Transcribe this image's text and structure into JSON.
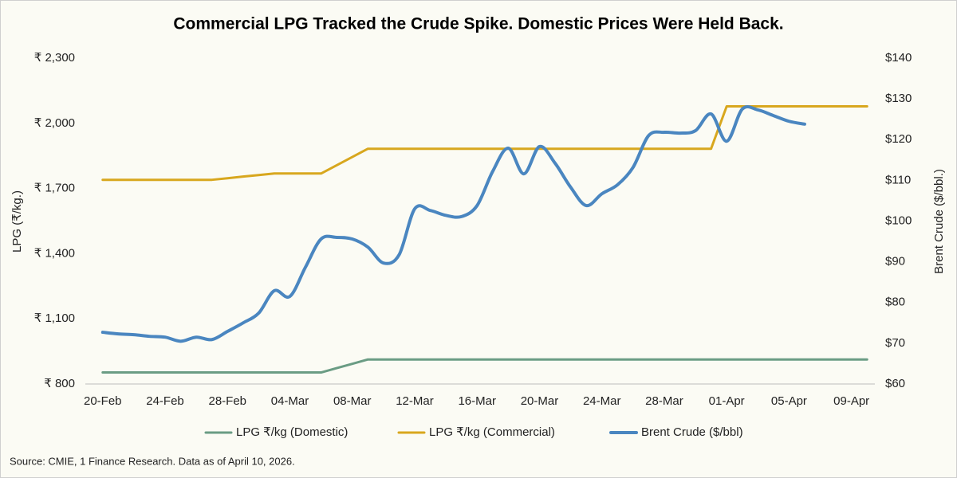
{
  "chart_data": {
    "type": "line",
    "title": "Commercial LPG Tracked the Crude Spike. Domestic Prices Were Held Back.",
    "source": "Source: CMIE, 1 Finance Research. Data as of April 10, 2026.",
    "y_label": "LPG (₹/kg.)",
    "y2_label": "Brent Crude ($/bbl.)",
    "legend": "bottom",
    "categories": [
      "20-Feb",
      null,
      null,
      null,
      "24-Feb",
      null,
      null,
      null,
      "28-Feb",
      null,
      null,
      null,
      "04-Mar",
      null,
      null,
      null,
      "08-Mar",
      null,
      null,
      null,
      "12-Mar",
      null,
      null,
      null,
      "16-Mar",
      null,
      null,
      null,
      "20-Mar",
      null,
      null,
      null,
      "24-Mar",
      null,
      null,
      null,
      "28-Mar",
      null,
      null,
      null,
      "01-Apr",
      null,
      null,
      null,
      "05-Apr",
      null,
      null,
      null,
      "09-Apr",
      null
    ],
    "ylim": [
      800,
      2300
    ],
    "yticks": [
      {
        "value": 800,
        "label": "₹ 800"
      },
      {
        "value": 1100,
        "label": "₹ 1,100"
      },
      {
        "value": 1400,
        "label": "₹ 1,400"
      },
      {
        "value": 1700,
        "label": "₹ 1,700"
      },
      {
        "value": 2000,
        "label": "₹ 2,000"
      },
      {
        "value": 2300,
        "label": "₹ 2,300"
      }
    ],
    "y2lim": [
      60,
      140
    ],
    "y2ticks": [
      {
        "value": 60,
        "label": "$60"
      },
      {
        "value": 70,
        "label": "$70"
      },
      {
        "value": 80,
        "label": "$80"
      },
      {
        "value": 90,
        "label": "$90"
      },
      {
        "value": 100,
        "label": "$100"
      },
      {
        "value": 110,
        "label": "$110"
      },
      {
        "value": 120,
        "label": "$120"
      },
      {
        "value": 130,
        "label": "$130"
      },
      {
        "value": 140,
        "label": "$140"
      }
    ],
    "series": [
      {
        "name": "LPG ₹/kg (Domestic)",
        "color": "#6a9c84",
        "smooth": false,
        "values": [
          853,
          853,
          853,
          853,
          853,
          853,
          853,
          853,
          853,
          853,
          853,
          853,
          853,
          853,
          853,
          873,
          893,
          913,
          913,
          913,
          913,
          913,
          913,
          913,
          913,
          913,
          913,
          913,
          913,
          913,
          913,
          913,
          913,
          913,
          913,
          913,
          913,
          913,
          913,
          913,
          913,
          913,
          913,
          913,
          913,
          913,
          913,
          913,
          913,
          913
        ]
      },
      {
        "name": "LPG ₹/kg (Commercial)",
        "color": "#d8a71e",
        "smooth": false,
        "values": [
          1740,
          1740,
          1740,
          1740,
          1740,
          1740,
          1740,
          1740,
          1747,
          1755,
          1762,
          1769,
          1769,
          1769,
          1769,
          1807,
          1845,
          1883,
          1883,
          1883,
          1883,
          1883,
          1883,
          1883,
          1883,
          1883,
          1883,
          1883,
          1883,
          1883,
          1883,
          1883,
          1883,
          1883,
          1883,
          1883,
          1883,
          1883,
          1883,
          1883,
          2078,
          2078,
          2078,
          2078,
          2078,
          2078,
          2078,
          2078,
          2078,
          2078
        ]
      },
      {
        "name": "Brent Crude ($/bbl)",
        "color": "#4a86c0",
        "axis": "y2",
        "smooth": true,
        "values": [
          72.7,
          72.3,
          72.1,
          71.7,
          71.5,
          70.5,
          71.5,
          70.9,
          72.9,
          75.0,
          77.4,
          82.9,
          81.5,
          88.7,
          95.6,
          96.0,
          95.6,
          93.6,
          89.7,
          91.7,
          103.0,
          102.6,
          101.4,
          101.1,
          103.8,
          112.2,
          117.9,
          111.6,
          118.3,
          114.2,
          108.3,
          103.8,
          106.7,
          108.9,
          113.2,
          121.0,
          121.8,
          121.6,
          122.2,
          126.3,
          119.6,
          127.5,
          127.3,
          125.9,
          124.5,
          123.8,
          null,
          null,
          null,
          null
        ]
      }
    ]
  }
}
